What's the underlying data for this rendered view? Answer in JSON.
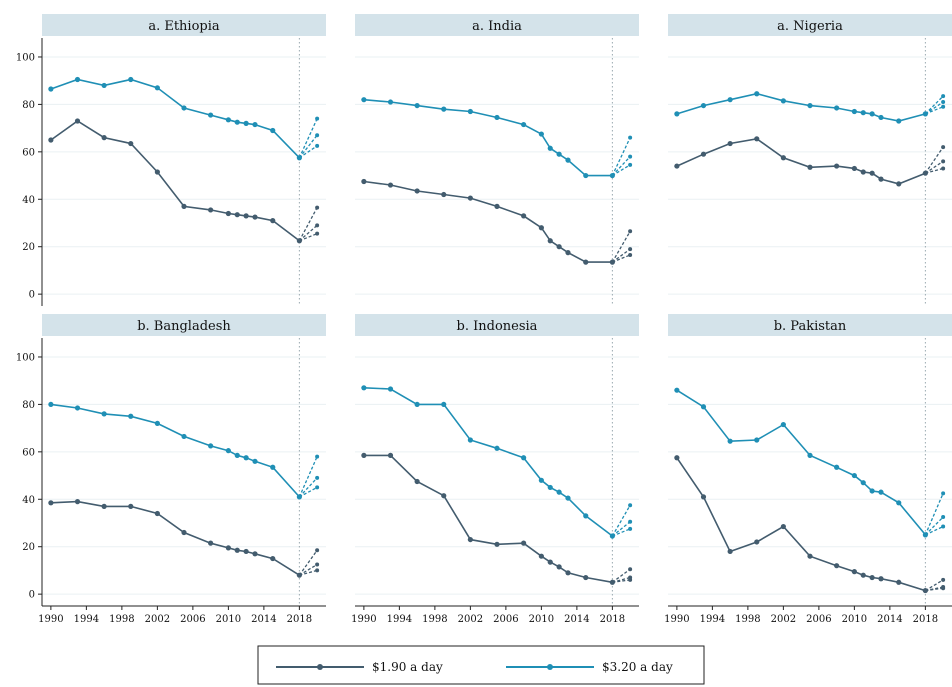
{
  "colors": {
    "s190": "#435c6e",
    "s320": "#1f8fb5",
    "strip": "#d4e3ea"
  },
  "legend": [
    {
      "label": "$1.90 a day",
      "color": "#435c6e"
    },
    {
      "label": "$3.20 a day",
      "color": "#1f8fb5"
    }
  ],
  "chart_data": {
    "type": "line",
    "y_ticks": [
      0,
      20,
      40,
      60,
      80,
      100
    ],
    "x_ticks": [
      1990,
      1994,
      1998,
      2002,
      2006,
      2010,
      2014,
      2018
    ],
    "xlim": [
      1989,
      2021
    ],
    "ylim": [
      -5,
      108
    ],
    "reference_year": 2018,
    "panels": [
      {
        "title": "a. Ethiopia",
        "series": [
          {
            "name": "$1.90 a day",
            "x": [
              1990,
              1993,
              1996,
              1999,
              2002,
              2005,
              2008,
              2010,
              2011,
              2012,
              2013,
              2015,
              2018
            ],
            "y": [
              65,
              73,
              66,
              63.5,
              51.5,
              37,
              35.5,
              34,
              33.5,
              33,
              32.5,
              31,
              22.5
            ],
            "projections": [
              36.5,
              29,
              25.5
            ]
          },
          {
            "name": "$3.20 a day",
            "x": [
              1990,
              1993,
              1996,
              1999,
              2002,
              2005,
              2008,
              2010,
              2011,
              2012,
              2013,
              2015,
              2018
            ],
            "y": [
              86.5,
              90.5,
              88,
              90.5,
              87,
              78.5,
              75.5,
              73.5,
              72.5,
              72,
              71.5,
              69,
              57.5
            ],
            "projections": [
              74,
              67,
              62.5
            ]
          }
        ]
      },
      {
        "title": "a. India",
        "series": [
          {
            "name": "$1.90 a day",
            "x": [
              1990,
              1993,
              1996,
              1999,
              2002,
              2005,
              2008,
              2010,
              2011,
              2012,
              2013,
              2015,
              2018
            ],
            "y": [
              47.5,
              46,
              43.5,
              42,
              40.5,
              37,
              33,
              28,
              22.5,
              20,
              17.5,
              13.5,
              13.5
            ],
            "projections": [
              26.5,
              19,
              16.5
            ]
          },
          {
            "name": "$3.20 a day",
            "x": [
              1990,
              1993,
              1996,
              1999,
              2002,
              2005,
              2008,
              2010,
              2011,
              2012,
              2013,
              2015,
              2018
            ],
            "y": [
              82,
              81,
              79.5,
              78,
              77,
              74.5,
              71.5,
              67.5,
              61.5,
              59,
              56.5,
              50,
              50
            ],
            "projections": [
              66,
              58,
              54.5
            ]
          }
        ]
      },
      {
        "title": "a. Nigeria",
        "series": [
          {
            "name": "$1.90 a day",
            "x": [
              1990,
              1993,
              1996,
              1999,
              2002,
              2005,
              2008,
              2010,
              2011,
              2012,
              2013,
              2015,
              2018
            ],
            "y": [
              54,
              59,
              63.5,
              65.5,
              57.5,
              53.5,
              54,
              53,
              51.5,
              51,
              48.5,
              46.5,
              51
            ],
            "projections": [
              62,
              56,
              53
            ]
          },
          {
            "name": "$3.20 a day",
            "x": [
              1990,
              1993,
              1996,
              1999,
              2002,
              2005,
              2008,
              2010,
              2011,
              2012,
              2013,
              2015,
              2018
            ],
            "y": [
              76,
              79.5,
              82,
              84.5,
              81.5,
              79.5,
              78.5,
              77,
              76.5,
              76,
              74.5,
              73,
              76
            ],
            "projections": [
              83.5,
              81,
              79
            ]
          }
        ]
      },
      {
        "title": "b. Bangladesh",
        "series": [
          {
            "name": "$1.90 a day",
            "x": [
              1990,
              1993,
              1996,
              1999,
              2002,
              2005,
              2008,
              2010,
              2011,
              2012,
              2013,
              2015,
              2018
            ],
            "y": [
              38.5,
              39,
              37,
              37,
              34,
              26,
              21.5,
              19.5,
              18.5,
              18,
              17,
              15,
              8
            ],
            "projections": [
              18.5,
              12.5,
              10
            ]
          },
          {
            "name": "$3.20 a day",
            "x": [
              1990,
              1993,
              1996,
              1999,
              2002,
              2005,
              2008,
              2010,
              2011,
              2012,
              2013,
              2015,
              2018
            ],
            "y": [
              80,
              78.5,
              76,
              75,
              72,
              66.5,
              62.5,
              60.5,
              58.5,
              57.5,
              56,
              53.5,
              41
            ],
            "projections": [
              58,
              49,
              45
            ]
          }
        ]
      },
      {
        "title": "b. Indonesia",
        "series": [
          {
            "name": "$1.90 a day",
            "x": [
              1990,
              1993,
              1996,
              1999,
              2002,
              2005,
              2008,
              2010,
              2011,
              2012,
              2013,
              2015,
              2018
            ],
            "y": [
              58.5,
              58.5,
              47.5,
              41.5,
              23,
              21,
              21.5,
              16,
              13.5,
              11.5,
              9,
              7,
              5
            ],
            "projections": [
              10.5,
              7,
              6
            ]
          },
          {
            "name": "$3.20 a day",
            "x": [
              1990,
              1993,
              1996,
              1999,
              2002,
              2005,
              2008,
              2010,
              2011,
              2012,
              2013,
              2015,
              2018
            ],
            "y": [
              87,
              86.5,
              80,
              80,
              65,
              61.5,
              57.5,
              48,
              45,
              43,
              40.5,
              33,
              24.5
            ],
            "projections": [
              37.5,
              30.5,
              27.5
            ]
          }
        ]
      },
      {
        "title": "b. Pakistan",
        "series": [
          {
            "name": "$1.90 a day",
            "x": [
              1990,
              1993,
              1996,
              1999,
              2002,
              2005,
              2008,
              2010,
              2011,
              2012,
              2013,
              2015,
              2018
            ],
            "y": [
              57.5,
              41,
              18,
              22,
              28.5,
              16,
              12,
              9.5,
              8,
              7,
              6.5,
              5,
              1.5
            ],
            "projections": [
              6,
              3,
              2.5
            ]
          },
          {
            "name": "$3.20 a day",
            "x": [
              1990,
              1993,
              1996,
              1999,
              2002,
              2005,
              2008,
              2010,
              2011,
              2012,
              2013,
              2015,
              2018
            ],
            "y": [
              86,
              79,
              64.5,
              65,
              71.5,
              58.5,
              53.5,
              50,
              47,
              43.5,
              43,
              38.5,
              25
            ],
            "projections": [
              42.5,
              32.5,
              28.5
            ]
          }
        ]
      }
    ]
  }
}
